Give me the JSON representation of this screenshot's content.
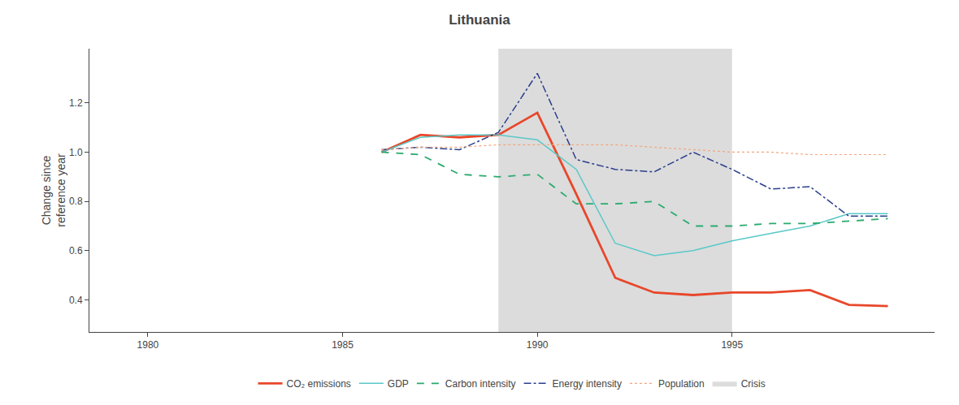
{
  "chart_data": {
    "type": "line",
    "title": "Lithuania",
    "ylabel": "Change since\nreference year",
    "x": [
      1986,
      1987,
      1988,
      1989,
      1990,
      1991,
      1992,
      1993,
      1994,
      1995,
      1996,
      1997,
      1998,
      1999
    ],
    "series": [
      {
        "name": "CO₂ emissions",
        "color": "#e8472a",
        "line_style": "solid",
        "values": [
          1.0,
          1.07,
          1.06,
          1.07,
          1.16,
          0.83,
          0.49,
          0.43,
          0.42,
          0.43,
          0.43,
          0.44,
          0.38,
          0.375
        ]
      },
      {
        "name": "GDP",
        "color": "#5bc8c8",
        "line_style": "solid",
        "values": [
          1.0,
          1.06,
          1.07,
          1.07,
          1.05,
          0.93,
          0.63,
          0.58,
          0.6,
          0.64,
          0.67,
          0.7,
          0.75,
          0.75
        ]
      },
      {
        "name": "Carbon intensity",
        "color": "#2aaa6e",
        "line_style": "dashed",
        "values": [
          1.0,
          0.99,
          0.91,
          0.9,
          0.91,
          0.79,
          0.79,
          0.8,
          0.7,
          0.7,
          0.71,
          0.71,
          0.72,
          0.73
        ]
      },
      {
        "name": "Energy intensity",
        "color": "#2b3f8c",
        "line_style": "dashdot",
        "values": [
          1.01,
          1.02,
          1.01,
          1.08,
          1.32,
          0.97,
          0.93,
          0.92,
          1.0,
          0.93,
          0.85,
          0.86,
          0.74,
          0.74
        ]
      },
      {
        "name": "Population",
        "color": "#f4a57a",
        "line_style": "dotted",
        "values": [
          1.01,
          1.02,
          1.02,
          1.03,
          1.03,
          1.03,
          1.03,
          1.02,
          1.01,
          1.0,
          1.0,
          0.99,
          0.99,
          0.99
        ]
      }
    ],
    "spans": [
      {
        "name": "Crisis",
        "start": 1989,
        "end": 1995,
        "color": "#dcdcdc"
      }
    ],
    "xlim": [
      1978.5,
      2000.2
    ],
    "xticks": [
      1980,
      1985,
      1990,
      1995
    ],
    "ylim": [
      0.27,
      1.42
    ],
    "yticks": [
      0.4,
      0.6,
      0.8,
      {
        "value": 1.0,
        "label": "1.0"
      },
      1.2
    ],
    "grid": false,
    "legend": "bottom"
  }
}
